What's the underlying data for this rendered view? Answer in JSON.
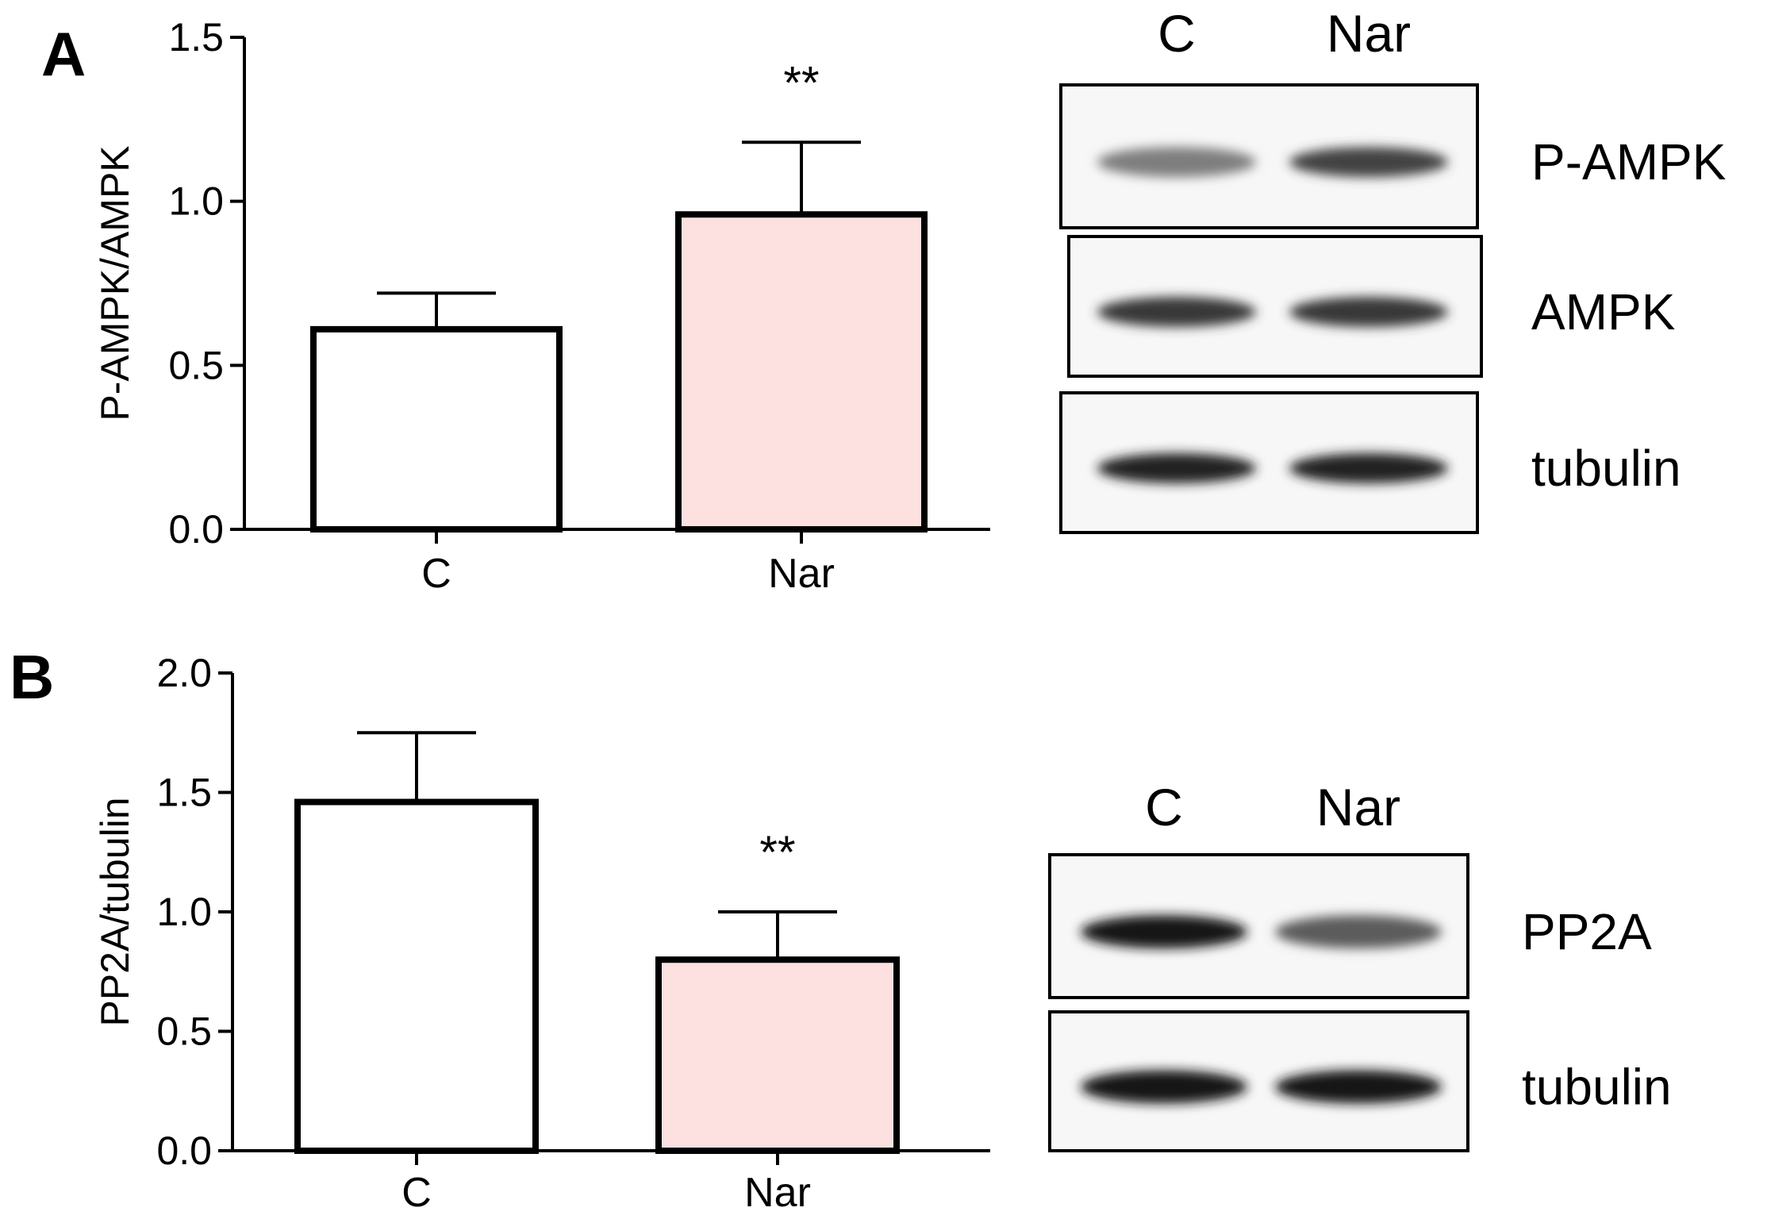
{
  "chart_data": [
    {
      "panel": "A",
      "type": "bar",
      "ylabel": "P-AMPK/AMPK",
      "categories": [
        "C",
        "Nar"
      ],
      "values": [
        0.61,
        0.96
      ],
      "errors": [
        0.11,
        0.22
      ],
      "significance": [
        "",
        "**"
      ],
      "ylim": [
        0,
        1.5
      ],
      "yticks": [
        "0.0",
        "0.5",
        "1.0",
        "1.5"
      ],
      "bar_fills": [
        "#ffffff",
        "#fde0e0"
      ],
      "blot": {
        "lanes": [
          "C",
          "Nar"
        ],
        "rows": [
          {
            "label": "P-AMPK",
            "intensity": [
              0.55,
              0.8
            ]
          },
          {
            "label": "AMPK",
            "intensity": [
              0.85,
              0.85
            ]
          },
          {
            "label": "tubulin",
            "intensity": [
              0.95,
              0.95
            ]
          }
        ]
      }
    },
    {
      "panel": "B",
      "type": "bar",
      "ylabel": "PP2A/tubulin",
      "categories": [
        "C",
        "Nar"
      ],
      "values": [
        1.46,
        0.8
      ],
      "errors": [
        0.29,
        0.2
      ],
      "significance": [
        "",
        "**"
      ],
      "ylim": [
        0,
        2.0
      ],
      "yticks": [
        "0.0",
        "0.5",
        "1.0",
        "1.5",
        "2.0"
      ],
      "bar_fills": [
        "#ffffff",
        "#fde0e0"
      ],
      "blot": {
        "lanes": [
          "C",
          "Nar"
        ],
        "rows": [
          {
            "label": "PP2A",
            "intensity": [
              1.0,
              0.7
            ]
          },
          {
            "label": "tubulin",
            "intensity": [
              1.0,
              1.0
            ]
          }
        ]
      }
    }
  ]
}
